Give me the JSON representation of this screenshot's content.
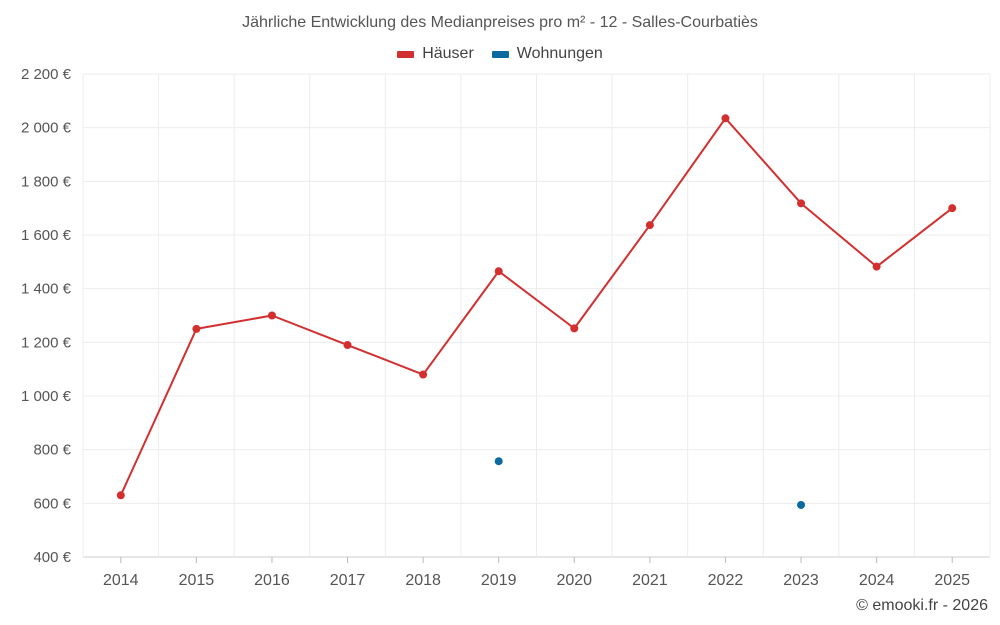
{
  "chart_data": {
    "type": "line",
    "title": "Jährliche Entwicklung des Medianpreises pro m² - 12 - Salles-Courbatiès",
    "categories": [
      "2014",
      "2015",
      "2016",
      "2017",
      "2018",
      "2019",
      "2020",
      "2021",
      "2022",
      "2023",
      "2024",
      "2025"
    ],
    "ylim": [
      400,
      2200
    ],
    "yticks": [
      400,
      600,
      800,
      1000,
      1200,
      1400,
      1600,
      1800,
      2000,
      2200
    ],
    "ytick_labels": [
      "400 €",
      "600 €",
      "800 €",
      "1 000 €",
      "1 200 €",
      "1 400 €",
      "1 600 €",
      "1 800 €",
      "2 000 €",
      "2 200 €"
    ],
    "grid": true,
    "legend_position": "top-center",
    "series": [
      {
        "name": "Häuser",
        "color": "#d32f2f",
        "values": [
          630,
          1250,
          1300,
          1190,
          1080,
          1465,
          1252,
          1637,
          2035,
          1718,
          1482,
          1700
        ]
      },
      {
        "name": "Wohnungen",
        "color": "#0d6aa0",
        "values": [
          null,
          null,
          null,
          null,
          null,
          757,
          null,
          null,
          null,
          594,
          null,
          null
        ]
      }
    ]
  },
  "credit": "© emooki.fr - 2026"
}
